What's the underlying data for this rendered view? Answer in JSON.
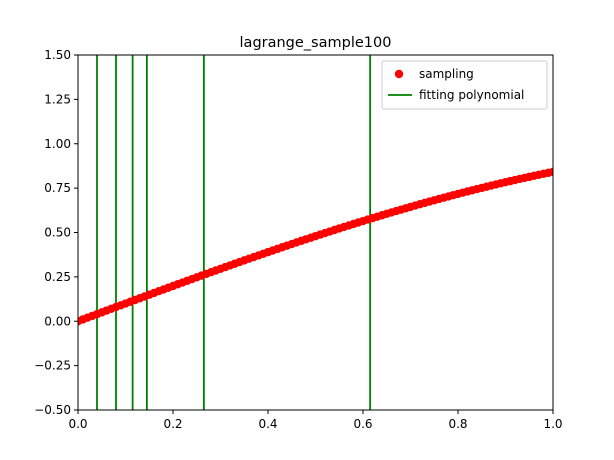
{
  "chart_data": {
    "type": "scatter",
    "title": "lagrange_sample100",
    "xlabel": "",
    "ylabel": "",
    "xlim": [
      0.0,
      1.0
    ],
    "ylim": [
      -0.5,
      1.5
    ],
    "x_ticks": [
      0.0,
      0.2,
      0.4,
      0.6,
      0.8,
      1.0
    ],
    "x_tick_labels": [
      "0.0",
      "0.2",
      "0.4",
      "0.6",
      "0.8",
      "1.0"
    ],
    "y_ticks": [
      -0.5,
      -0.25,
      0.0,
      0.25,
      0.5,
      0.75,
      1.0,
      1.25,
      1.5
    ],
    "y_tick_labels": [
      "−0.50",
      "−0.25",
      "0.00",
      "0.25",
      "0.50",
      "0.75",
      "1.00",
      "1.25",
      "1.50"
    ],
    "grid": false,
    "legend_position": "top-right",
    "series": [
      {
        "name": "sampling",
        "kind": "points",
        "color": "#ff0000",
        "x": [
          0.0,
          0.01,
          0.02,
          0.03,
          0.04,
          0.05,
          0.06,
          0.07,
          0.08,
          0.09,
          0.1,
          0.11,
          0.12,
          0.13,
          0.14,
          0.15,
          0.16,
          0.17,
          0.18,
          0.19,
          0.2,
          0.21,
          0.22,
          0.23,
          0.24,
          0.25,
          0.26,
          0.27,
          0.28,
          0.29,
          0.3,
          0.31,
          0.32,
          0.33,
          0.34,
          0.35,
          0.36,
          0.37,
          0.38,
          0.39,
          0.4,
          0.41,
          0.42,
          0.43,
          0.44,
          0.45,
          0.46,
          0.47,
          0.48,
          0.49,
          0.5,
          0.51,
          0.52,
          0.53,
          0.54,
          0.55,
          0.56,
          0.57,
          0.58,
          0.59,
          0.6,
          0.61,
          0.62,
          0.63,
          0.64,
          0.65,
          0.66,
          0.67,
          0.68,
          0.69,
          0.7,
          0.71,
          0.72,
          0.73,
          0.74,
          0.75,
          0.76,
          0.77,
          0.78,
          0.79,
          0.8,
          0.81,
          0.82,
          0.83,
          0.84,
          0.85,
          0.86,
          0.87,
          0.88,
          0.89,
          0.9,
          0.91,
          0.92,
          0.93,
          0.94,
          0.95,
          0.96,
          0.97,
          0.98,
          0.99,
          1.0
        ],
        "y": [
          0.0,
          0.01,
          0.02,
          0.03,
          0.04,
          0.05,
          0.06,
          0.07,
          0.08,
          0.09,
          0.0998,
          0.1098,
          0.1197,
          0.1296,
          0.1395,
          0.1494,
          0.1593,
          0.1692,
          0.179,
          0.1889,
          0.1987,
          0.2085,
          0.2182,
          0.228,
          0.2377,
          0.2474,
          0.2571,
          0.2667,
          0.2764,
          0.2859,
          0.2955,
          0.305,
          0.3146,
          0.324,
          0.3335,
          0.3429,
          0.3523,
          0.3616,
          0.3709,
          0.3802,
          0.3894,
          0.3986,
          0.4078,
          0.4169,
          0.4259,
          0.435,
          0.4439,
          0.4529,
          0.4618,
          0.4706,
          0.4794,
          0.4882,
          0.4969,
          0.5055,
          0.5141,
          0.5227,
          0.5312,
          0.5396,
          0.548,
          0.5564,
          0.5646,
          0.5729,
          0.581,
          0.5891,
          0.5972,
          0.6052,
          0.6131,
          0.621,
          0.6288,
          0.6365,
          0.6442,
          0.6518,
          0.6594,
          0.6669,
          0.6743,
          0.6816,
          0.6889,
          0.6961,
          0.7033,
          0.7104,
          0.7174,
          0.7243,
          0.7311,
          0.7379,
          0.7446,
          0.7513,
          0.7578,
          0.7643,
          0.7707,
          0.7771,
          0.7833,
          0.7895,
          0.7956,
          0.8016,
          0.8076,
          0.8134,
          0.8192,
          0.8249,
          0.8305,
          0.836,
          0.8415
        ]
      },
      {
        "name": "fitting polynomial",
        "kind": "vertical-lines",
        "color": "#008000",
        "x": [
          0.04,
          0.08,
          0.115,
          0.145,
          0.265,
          0.615
        ]
      }
    ]
  }
}
